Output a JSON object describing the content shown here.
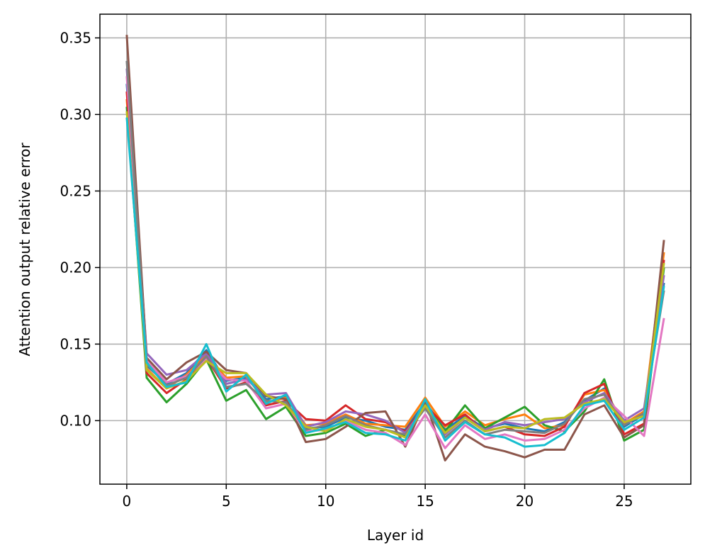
{
  "chart_data": {
    "type": "line",
    "title": "",
    "xlabel": "Layer id",
    "ylabel": "Attention output relative error",
    "xlim": [
      -1.35,
      28.35
    ],
    "ylim": [
      0.0585,
      0.3655
    ],
    "xticks": [
      0,
      5,
      10,
      15,
      20,
      25
    ],
    "xtick_labels": [
      "0",
      "5",
      "10",
      "15",
      "20",
      "25"
    ],
    "yticks": [
      0.1,
      0.15,
      0.2,
      0.25,
      0.3,
      0.35
    ],
    "ytick_labels": [
      "0.10",
      "0.15",
      "0.20",
      "0.25",
      "0.30",
      "0.35"
    ],
    "grid": true,
    "legend": "none",
    "x": [
      0,
      1,
      2,
      3,
      4,
      5,
      6,
      7,
      8,
      9,
      10,
      11,
      12,
      13,
      14,
      15,
      16,
      17,
      18,
      19,
      20,
      21,
      22,
      23,
      24,
      25,
      26,
      27
    ],
    "series": [
      {
        "color": "#1f77b4",
        "values": [
          0.32,
          0.136,
          0.124,
          0.131,
          0.146,
          0.126,
          0.128,
          0.114,
          0.116,
          0.095,
          0.096,
          0.102,
          0.1,
          0.096,
          0.094,
          0.112,
          0.094,
          0.103,
          0.095,
          0.098,
          0.095,
          0.093,
          0.099,
          0.113,
          0.121,
          0.096,
          0.104,
          0.19
        ]
      },
      {
        "color": "#ff7f0e",
        "values": [
          0.31,
          0.134,
          0.121,
          0.13,
          0.143,
          0.128,
          0.129,
          0.112,
          0.115,
          0.097,
          0.098,
          0.104,
          0.098,
          0.097,
          0.096,
          0.115,
          0.096,
          0.106,
          0.097,
          0.101,
          0.104,
          0.095,
          0.097,
          0.117,
          0.12,
          0.098,
          0.106,
          0.21
        ]
      },
      {
        "color": "#2ca02c",
        "values": [
          0.305,
          0.128,
          0.112,
          0.124,
          0.14,
          0.113,
          0.12,
          0.101,
          0.109,
          0.09,
          0.092,
          0.098,
          0.09,
          0.094,
          0.09,
          0.111,
          0.093,
          0.11,
          0.095,
          0.102,
          0.109,
          0.097,
          0.093,
          0.106,
          0.127,
          0.087,
          0.094,
          0.2
        ]
      },
      {
        "color": "#d62728",
        "values": [
          0.315,
          0.131,
          0.118,
          0.127,
          0.141,
          0.121,
          0.125,
          0.11,
          0.113,
          0.101,
          0.1,
          0.11,
          0.101,
          0.099,
          0.093,
          0.11,
          0.097,
          0.104,
          0.093,
          0.096,
          0.091,
          0.09,
          0.096,
          0.118,
          0.124,
          0.091,
          0.098,
          0.205
        ]
      },
      {
        "color": "#9467bd",
        "values": [
          0.33,
          0.144,
          0.13,
          0.133,
          0.144,
          0.124,
          0.127,
          0.117,
          0.118,
          0.096,
          0.099,
          0.106,
          0.104,
          0.1,
          0.092,
          0.109,
          0.091,
          0.102,
          0.094,
          0.099,
          0.097,
          0.099,
          0.101,
          0.112,
          0.118,
          0.1,
          0.108,
          0.195
        ]
      },
      {
        "color": "#8c564b",
        "values": [
          0.352,
          0.141,
          0.127,
          0.138,
          0.145,
          0.133,
          0.131,
          0.116,
          0.114,
          0.086,
          0.088,
          0.096,
          0.105,
          0.106,
          0.083,
          0.113,
          0.074,
          0.091,
          0.083,
          0.08,
          0.076,
          0.081,
          0.081,
          0.104,
          0.11,
          0.089,
          0.097,
          0.218
        ]
      },
      {
        "color": "#e377c2",
        "values": [
          0.325,
          0.139,
          0.125,
          0.129,
          0.14,
          0.127,
          0.126,
          0.108,
          0.111,
          0.093,
          0.094,
          0.1,
          0.094,
          0.092,
          0.084,
          0.104,
          0.082,
          0.097,
          0.088,
          0.091,
          0.087,
          0.088,
          0.094,
          0.108,
          0.115,
          0.103,
          0.09,
          0.167
        ]
      },
      {
        "color": "#7f7f7f",
        "values": [
          0.335,
          0.137,
          0.123,
          0.128,
          0.142,
          0.122,
          0.124,
          0.113,
          0.112,
          0.094,
          0.097,
          0.103,
          0.097,
          0.094,
          0.091,
          0.108,
          0.089,
          0.1,
          0.091,
          0.094,
          0.093,
          0.092,
          0.098,
          0.114,
          0.117,
          0.097,
          0.105,
          0.185
        ]
      },
      {
        "color": "#bcbd22",
        "values": [
          0.302,
          0.133,
          0.121,
          0.126,
          0.139,
          0.131,
          0.131,
          0.117,
          0.11,
          0.096,
          0.093,
          0.101,
          0.096,
          0.094,
          0.089,
          0.11,
          0.092,
          0.102,
          0.093,
          0.096,
          0.095,
          0.101,
          0.102,
          0.111,
          0.114,
          0.099,
          0.103,
          0.203
        ]
      },
      {
        "color": "#17becf",
        "values": [
          0.298,
          0.138,
          0.122,
          0.125,
          0.15,
          0.119,
          0.13,
          0.111,
          0.117,
          0.092,
          0.095,
          0.099,
          0.092,
          0.091,
          0.087,
          0.114,
          0.087,
          0.099,
          0.091,
          0.089,
          0.083,
          0.084,
          0.092,
          0.11,
          0.113,
          0.094,
          0.102,
          0.188
        ]
      }
    ]
  }
}
